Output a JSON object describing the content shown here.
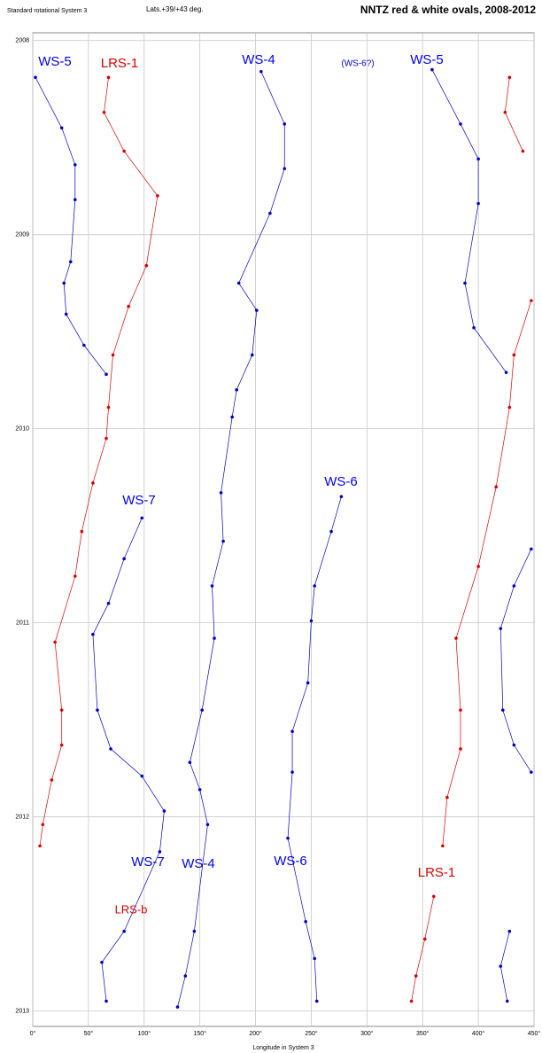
{
  "chart_data": {
    "type": "scatter",
    "title": "NNTZ red & white ovals, 2008-2012",
    "subtitle": "Lats.+39/+43 deg.",
    "corner_note": "Standard rotational System 3",
    "x_label": "Longitude in System 3",
    "xlim": [
      0,
      450
    ],
    "ylim": [
      2007.96,
      2013.08
    ],
    "y_inverted": true,
    "grid": true,
    "xticks": [
      {
        "value": 0,
        "label": "0°"
      },
      {
        "value": 50,
        "label": "50°"
      },
      {
        "value": 100,
        "label": "100°"
      },
      {
        "value": 150,
        "label": "150°"
      },
      {
        "value": 200,
        "label": "200°"
      },
      {
        "value": 250,
        "label": "250°"
      },
      {
        "value": 300,
        "label": "300°"
      },
      {
        "value": 350,
        "label": "350°"
      },
      {
        "value": 400,
        "label": "400°"
      },
      {
        "value": 450,
        "label": "450°"
      }
    ],
    "yticks": [
      2008,
      2009,
      2010,
      2011,
      2012,
      2013
    ],
    "series": [
      {
        "color": "#0000cc",
        "x": [
          2.4,
          26,
          38,
          38,
          34,
          28,
          30,
          46,
          66
        ],
        "values": [
          2008.19,
          2008.45,
          2008.64,
          2008.82,
          2009.14,
          2009.25,
          2009.41,
          2009.57,
          2009.72
        ]
      },
      {
        "color": "#0000cc",
        "x": [
          358.5,
          384,
          400,
          400,
          388,
          396,
          425
        ],
        "values": [
          2008.15,
          2008.43,
          2008.61,
          2008.84,
          2009.25,
          2009.48,
          2009.71
        ]
      },
      {
        "color": "#e00000",
        "x": [
          68,
          64,
          82,
          112,
          102,
          86,
          72,
          68,
          66,
          54,
          44,
          38,
          20,
          26,
          26,
          17,
          9,
          6.4
        ],
        "values": [
          2008.19,
          2008.37,
          2008.57,
          2008.8,
          2009.16,
          2009.37,
          2009.62,
          2009.89,
          2010.05,
          2010.28,
          2010.53,
          2010.76,
          2011.1,
          2011.45,
          2011.63,
          2011.81,
          2012.04,
          2012.15
        ]
      },
      {
        "color": "#e00000",
        "x": [
          428,
          424,
          440
        ],
        "values": [
          2008.19,
          2008.37,
          2008.57
        ]
      },
      {
        "color": "#e00000",
        "x": [
          447.5,
          432,
          428,
          416,
          400,
          380,
          384,
          384,
          372,
          368
        ],
        "values": [
          2009.34,
          2009.62,
          2009.89,
          2010.3,
          2010.71,
          2011.08,
          2011.45,
          2011.65,
          2011.9,
          2012.15
        ]
      },
      {
        "color": "#0000cc",
        "x": [
          205,
          226,
          226,
          213,
          185,
          201,
          197,
          183,
          179,
          169,
          171,
          161,
          163,
          152,
          141,
          150,
          157,
          145,
          137,
          130
        ],
        "values": [
          2008.16,
          2008.43,
          2008.66,
          2008.89,
          2009.25,
          2009.39,
          2009.62,
          2009.8,
          2009.94,
          2010.33,
          2010.58,
          2010.81,
          2011.08,
          2011.45,
          2011.72,
          2011.86,
          2012.04,
          2012.59,
          2012.82,
          2012.98
        ]
      },
      {
        "color": "#0000cc",
        "x": [
          277,
          268,
          253,
          250,
          247,
          233,
          233,
          229,
          245,
          253,
          255
        ],
        "values": [
          2010.35,
          2010.53,
          2010.81,
          2010.99,
          2011.31,
          2011.56,
          2011.77,
          2012.11,
          2012.54,
          2012.73,
          2012.95
        ]
      },
      {
        "color": "#0000cc",
        "x": [
          98,
          82,
          68,
          54,
          58,
          70,
          98,
          118,
          114,
          82,
          62,
          66
        ],
        "values": [
          2010.46,
          2010.67,
          2010.9,
          2011.06,
          2011.45,
          2011.65,
          2011.79,
          2011.97,
          2012.18,
          2012.59,
          2012.75,
          2012.95
        ]
      },
      {
        "color": "#0000cc",
        "x": [
          447.5,
          432,
          420,
          422,
          432,
          447.5
        ],
        "values": [
          2010.62,
          2010.81,
          2011.03,
          2011.45,
          2011.63,
          2011.77
        ]
      },
      {
        "color": "#0000cc",
        "x": [
          428,
          420,
          426
        ],
        "values": [
          2012.59,
          2012.77,
          2012.95
        ]
      },
      {
        "color": "#e00000",
        "x": [
          360,
          352,
          344,
          340
        ],
        "values": [
          2012.41,
          2012.63,
          2012.82,
          2012.95
        ]
      }
    ],
    "annotations": [
      {
        "text": "WS-5",
        "color": "#0000ee"
      },
      {
        "text": "LRS-1",
        "color": "#e00000"
      },
      {
        "text": "WS-4",
        "color": "#0000ee"
      },
      {
        "text": "(WS-6?)",
        "color": "#0000ee"
      },
      {
        "text": "WS-5",
        "color": "#0000ee"
      },
      {
        "text": "WS-6",
        "color": "#0000ee"
      },
      {
        "text": "WS-7",
        "color": "#0000ee"
      },
      {
        "text": "WS-7",
        "color": "#0000ee"
      },
      {
        "text": "WS-4",
        "color": "#0000ee"
      },
      {
        "text": "WS-6",
        "color": "#0000ee"
      },
      {
        "text": "LRS-1",
        "color": "#e00000"
      },
      {
        "text": "LRS-b",
        "color": "#e00000"
      }
    ]
  }
}
